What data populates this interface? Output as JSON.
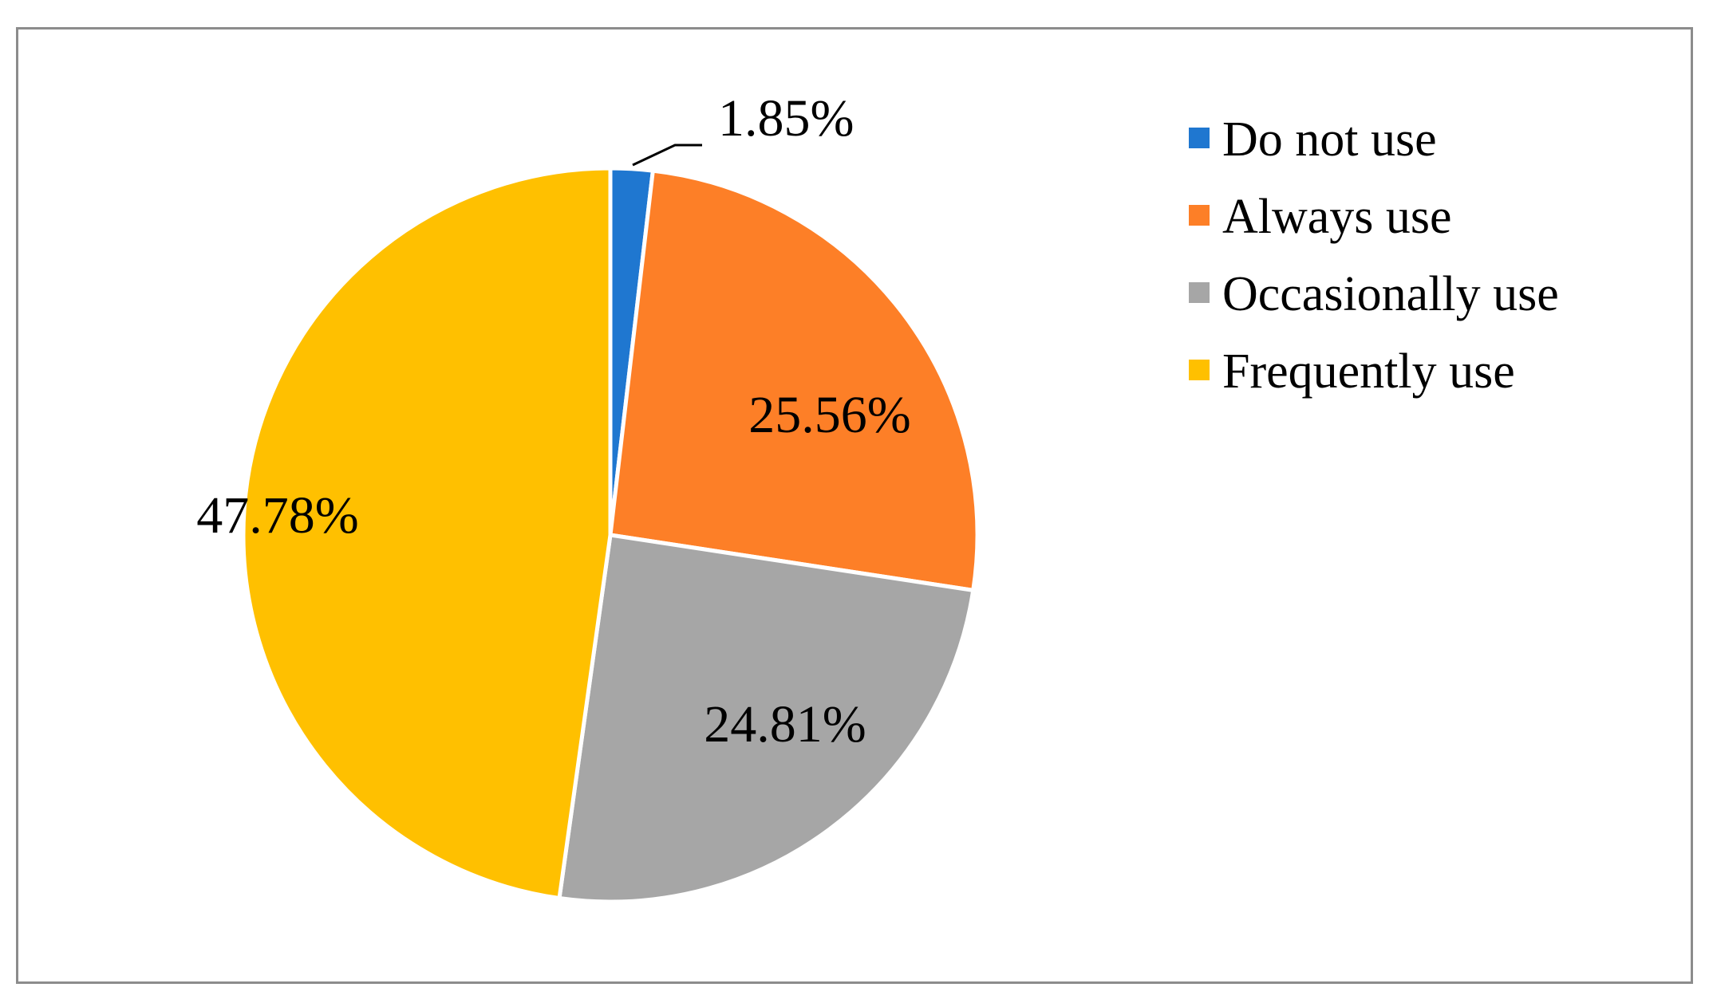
{
  "chart_data": {
    "type": "pie",
    "categories": [
      "Do not use",
      "Always use",
      "Occasionally use",
      "Frequently use"
    ],
    "values": [
      1.85,
      25.56,
      24.81,
      47.78
    ],
    "labels": [
      "1.85%",
      "25.56%",
      "24.81%",
      "47.78%"
    ],
    "colors": [
      "#1f77d0",
      "#fd7f27",
      "#a6a6a6",
      "#ffc000"
    ],
    "start_angle": "12 o'clock",
    "direction": "clockwise",
    "legend": {
      "position": "right",
      "items": [
        {
          "label": "Do not use",
          "color": "#1f77d0"
        },
        {
          "label": "Always use",
          "color": "#fd7f27"
        },
        {
          "label": "Occasionally use",
          "color": "#a6a6a6"
        },
        {
          "label": "Frequently use",
          "color": "#ffc000"
        }
      ]
    }
  }
}
